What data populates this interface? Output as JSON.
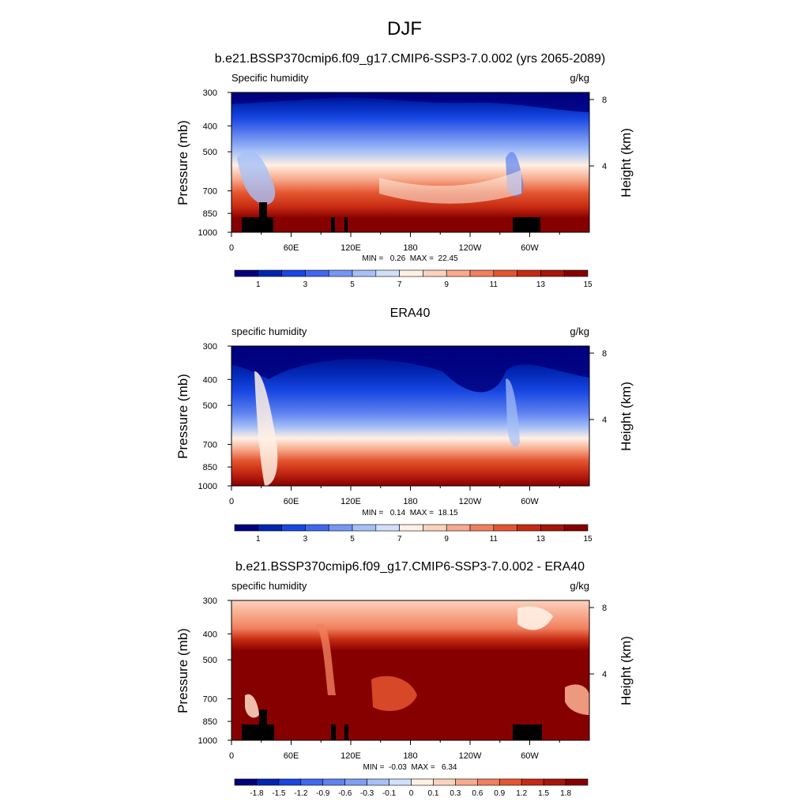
{
  "page_title": "DJF",
  "chart_data": [
    {
      "type": "heatmap",
      "title": "b.e21.BSSP370cmip6.f09_g17.CMIP6-SSP3-7.0.002 (yrs 2065-2089)",
      "left_label": "Specific humidity",
      "right_label": "g/kg",
      "ylabel": "Pressure (mb)",
      "y2label": "Height (km)",
      "xlabel": "",
      "x_ticks": [
        "0",
        "60E",
        "120E",
        "180",
        "120W",
        "60W"
      ],
      "x_tick_lon": [
        0,
        60,
        120,
        180,
        240,
        300
      ],
      "xlim": [
        0,
        360
      ],
      "y_ticks": [
        "300",
        "400",
        "500",
        "700",
        "850",
        "1000"
      ],
      "y_tick_values": [
        300,
        400,
        500,
        700,
        850,
        1000
      ],
      "ylim": [
        1000,
        300
      ],
      "y_scale": "log",
      "y2_ticks": [
        "8",
        "4"
      ],
      "y2_tick_values": [
        8,
        4
      ],
      "stats": "MIN =   0.26  MAX =  22.45",
      "colorbar_labels": [
        "1",
        "3",
        "5",
        "7",
        "9",
        "11",
        "13",
        "15"
      ],
      "colorbar_colors": [
        "#00007d",
        "#0025b0",
        "#1746e2",
        "#3f67f0",
        "#7597f2",
        "#a6c0f7",
        "#d0e0fb",
        "#fff0e4",
        "#fbd2bd",
        "#f7aa8c",
        "#f0805e",
        "#e4552f",
        "#c72a12",
        "#a71609",
        "#870000"
      ]
    },
    {
      "type": "heatmap",
      "title": "ERA40",
      "left_label": "specific humidity",
      "right_label": "g/kg",
      "ylabel": "Pressure (mb)",
      "y2label": "Height (km)",
      "xlabel": "",
      "x_ticks": [
        "0",
        "60E",
        "120E",
        "180",
        "120W",
        "60W"
      ],
      "x_tick_lon": [
        0,
        60,
        120,
        180,
        240,
        300
      ],
      "xlim": [
        0,
        360
      ],
      "y_ticks": [
        "300",
        "400",
        "500",
        "700",
        "850",
        "1000"
      ],
      "y_tick_values": [
        300,
        400,
        500,
        700,
        850,
        1000
      ],
      "ylim": [
        1000,
        300
      ],
      "y_scale": "log",
      "y2_ticks": [
        "8",
        "4"
      ],
      "y2_tick_values": [
        8,
        4
      ],
      "stats": "MIN =   0.14  MAX =  18.15",
      "colorbar_labels": [
        "1",
        "3",
        "5",
        "7",
        "9",
        "11",
        "13",
        "15"
      ],
      "colorbar_colors": [
        "#00007d",
        "#0025b0",
        "#1746e2",
        "#3f67f0",
        "#7597f2",
        "#a6c0f7",
        "#d0e0fb",
        "#fff0e4",
        "#fbd2bd",
        "#f7aa8c",
        "#f0805e",
        "#e4552f",
        "#c72a12",
        "#a71609",
        "#870000"
      ]
    },
    {
      "type": "heatmap",
      "title": "b.e21.BSSP370cmip6.f09_g17.CMIP6-SSP3-7.0.002 - ERA40",
      "left_label": "specific humidity",
      "right_label": "g/kg",
      "ylabel": "Pressure (mb)",
      "y2label": "Height (km)",
      "xlabel": "",
      "x_ticks": [
        "0",
        "60E",
        "120E",
        "180",
        "120W",
        "60W"
      ],
      "x_tick_lon": [
        0,
        60,
        120,
        180,
        240,
        300
      ],
      "xlim": [
        0,
        360
      ],
      "y_ticks": [
        "300",
        "400",
        "500",
        "700",
        "850",
        "1000"
      ],
      "y_tick_values": [
        300,
        400,
        500,
        700,
        850,
        1000
      ],
      "ylim": [
        1000,
        300
      ],
      "y_scale": "log",
      "y2_ticks": [
        "8",
        "4"
      ],
      "y2_tick_values": [
        8,
        4
      ],
      "stats": "MIN =  -0.03  MAX =   6.34",
      "colorbar_labels": [
        "-1.8",
        "-1.5",
        "-1.2",
        "-0.9",
        "-0.6",
        "-0.3",
        "-0.1",
        "0",
        "0.1",
        "0.3",
        "0.6",
        "0.9",
        "1.2",
        "1.5",
        "1.8"
      ],
      "colorbar_colors": [
        "#00007d",
        "#0025b0",
        "#1746e2",
        "#3f67f0",
        "#5f82ef",
        "#7f9ef2",
        "#a6c0f7",
        "#d0e0fb",
        "#fff0e4",
        "#fbd2bd",
        "#f7aa8c",
        "#f0805e",
        "#e4552f",
        "#c72a12",
        "#a71609",
        "#870000"
      ]
    }
  ]
}
